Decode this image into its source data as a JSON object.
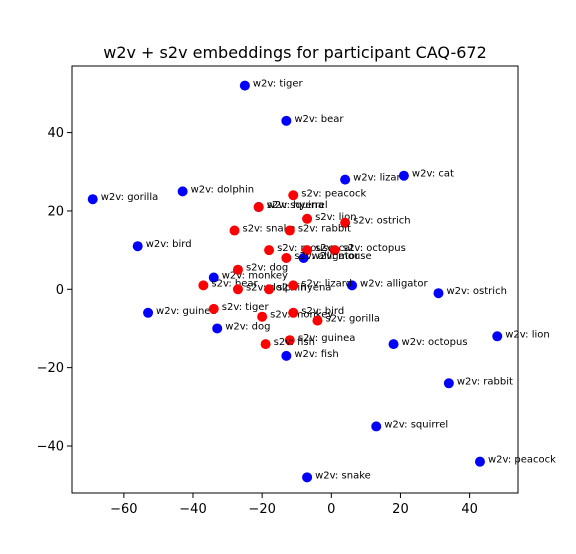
{
  "chart_data": {
    "type": "scatter",
    "title": "w2v + s2v embeddings for participant CAQ-672",
    "xlabel": "",
    "ylabel": "",
    "xlim": [
      -75,
      54
    ],
    "ylim": [
      -52,
      57
    ],
    "xticks": [
      -60,
      -40,
      -20,
      0,
      20,
      40
    ],
    "yticks": [
      -40,
      -20,
      0,
      20,
      40
    ],
    "grid": false,
    "legend": "none",
    "series": [
      {
        "color": "#0000ff",
        "points": [
          {
            "label": "w2v: tiger",
            "x": -25,
            "y": 52
          },
          {
            "label": "w2v: bear",
            "x": -13,
            "y": 43
          },
          {
            "label": "w2v: lizard",
            "x": 4,
            "y": 28
          },
          {
            "label": "w2v: cat",
            "x": 21,
            "y": 29
          },
          {
            "label": "w2v: gorilla",
            "x": -69,
            "y": 23
          },
          {
            "label": "w2v: dolphin",
            "x": -43,
            "y": 25
          },
          {
            "label": "w2v: hyena",
            "x": -21,
            "y": 21
          },
          {
            "label": "w2v: bird",
            "x": -56,
            "y": 11
          },
          {
            "label": "w2v: mouse",
            "x": -8,
            "y": 8
          },
          {
            "label": "w2v: monkey",
            "x": -34,
            "y": 3
          },
          {
            "label": "w2v: alligator",
            "x": 6,
            "y": 1
          },
          {
            "label": "w2v: ostrich",
            "x": 31,
            "y": -1
          },
          {
            "label": "w2v: guinea",
            "x": -53,
            "y": -6
          },
          {
            "label": "w2v: dog",
            "x": -33,
            "y": -10
          },
          {
            "label": "w2v: lion",
            "x": 48,
            "y": -12
          },
          {
            "label": "w2v: octopus",
            "x": 18,
            "y": -14
          },
          {
            "label": "w2v: fish",
            "x": -13,
            "y": -17
          },
          {
            "label": "w2v: rabbit",
            "x": 34,
            "y": -24
          },
          {
            "label": "w2v: squirrel",
            "x": 13,
            "y": -35
          },
          {
            "label": "w2v: peacock",
            "x": 43,
            "y": -44
          },
          {
            "label": "w2v: snake",
            "x": -7,
            "y": -48
          }
        ]
      },
      {
        "color": "#ff0000",
        "points": [
          {
            "label": "s2v: peacock",
            "x": -11,
            "y": 24
          },
          {
            "label": "s2v: squirrel",
            "x": -21,
            "y": 21
          },
          {
            "label": "s2v: lion",
            "x": -7,
            "y": 18
          },
          {
            "label": "s2v: ostrich",
            "x": 4,
            "y": 17
          },
          {
            "label": "s2v: snake",
            "x": -28,
            "y": 15
          },
          {
            "label": "s2v: rabbit",
            "x": -12,
            "y": 15
          },
          {
            "label": "s2v: mouse",
            "x": -18,
            "y": 10
          },
          {
            "label": "s2v: cat",
            "x": -7,
            "y": 10
          },
          {
            "label": "s2v: octopus",
            "x": 1,
            "y": 10
          },
          {
            "label": "s2v: alligator",
            "x": -13,
            "y": 8
          },
          {
            "label": "s2v: dog",
            "x": -27,
            "y": 5
          },
          {
            "label": "s2v: bear",
            "x": -37,
            "y": 1
          },
          {
            "label": "s2v: dolphin",
            "x": -27,
            "y": 0
          },
          {
            "label": "s2v: hyena",
            "x": -18,
            "y": 0
          },
          {
            "label": "s2v: lizard",
            "x": -11,
            "y": 1
          },
          {
            "label": "s2v: tiger",
            "x": -34,
            "y": -5
          },
          {
            "label": "s2v: monkey",
            "x": -20,
            "y": -7
          },
          {
            "label": "s2v: bird",
            "x": -11,
            "y": -6
          },
          {
            "label": "s2v: gorilla",
            "x": -4,
            "y": -8
          },
          {
            "label": "s2v: guinea",
            "x": -12,
            "y": -13
          },
          {
            "label": "s2v: fish",
            "x": -19,
            "y": -14
          }
        ]
      }
    ]
  }
}
